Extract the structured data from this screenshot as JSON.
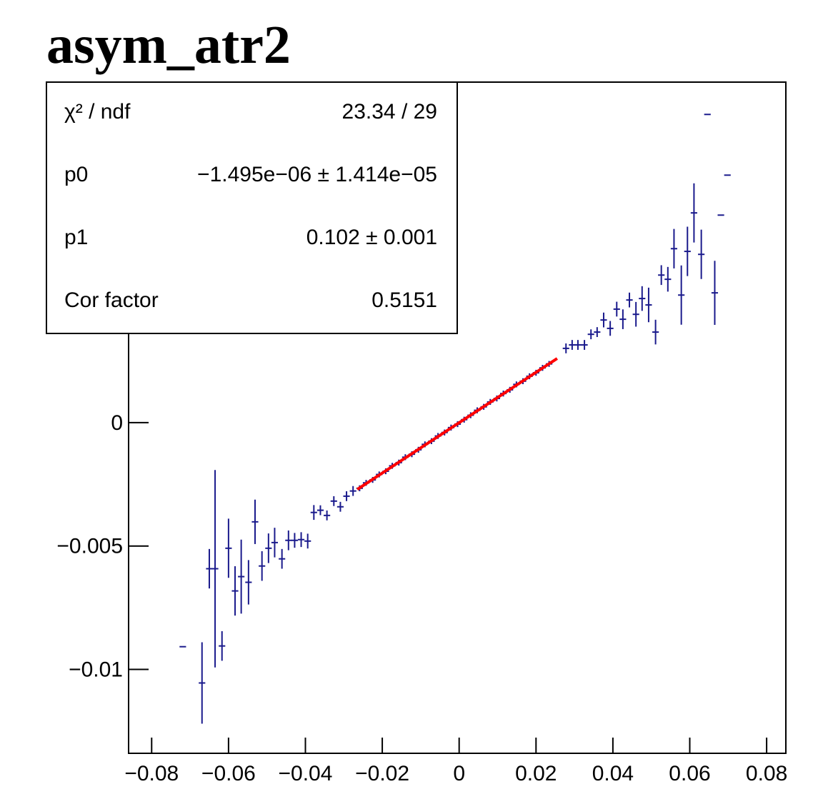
{
  "chart_data": {
    "type": "errorbar",
    "title": "asym_atr2",
    "xlim": [
      -0.086,
      0.085
    ],
    "ylim": [
      -0.0134,
      0.0138
    ],
    "xticks": [
      {
        "value": -0.08,
        "label": "−0.08"
      },
      {
        "value": -0.06,
        "label": "−0.06"
      },
      {
        "value": -0.04,
        "label": "−0.04"
      },
      {
        "value": -0.02,
        "label": "−0.02"
      },
      0,
      0.02,
      0.04,
      0.06,
      0.08
    ],
    "yticks": [
      {
        "value": -0.01,
        "label": "−0.01"
      },
      {
        "value": -0.005,
        "label": "−0.005"
      },
      0
    ],
    "series": [
      {
        "color": "#1a1a8c",
        "xerr": 0.00085,
        "x": [
          -0.0719,
          -0.0669,
          -0.065,
          -0.0635,
          -0.0617,
          -0.06,
          -0.0583,
          -0.0567,
          -0.0548,
          -0.0531,
          -0.0513,
          -0.0496,
          -0.048,
          -0.0461,
          -0.0444,
          -0.0428,
          -0.0411,
          -0.0394,
          -0.0378,
          -0.0361,
          -0.0344,
          -0.0326,
          -0.0309,
          -0.0293,
          -0.0276,
          -0.0259,
          -0.0242,
          -0.0225,
          -0.0208,
          -0.0191,
          -0.0174,
          -0.0157,
          -0.014,
          -0.0123,
          -0.0106,
          -0.0089,
          -0.0072,
          -0.0055,
          -0.0038,
          -0.0021,
          -0.0004,
          0.0013,
          0.003,
          0.0047,
          0.0064,
          0.0081,
          0.0098,
          0.0115,
          0.0132,
          0.0149,
          0.0166,
          0.0183,
          0.02,
          0.0217,
          0.0234,
          0.0278,
          0.0294,
          0.0309,
          0.0326,
          0.0343,
          0.0359,
          0.0376,
          0.0393,
          0.041,
          0.0426,
          0.0443,
          0.046,
          0.0476,
          0.0493,
          0.0511,
          0.0526,
          0.0543,
          0.0559,
          0.0578,
          0.0594,
          0.0611,
          0.063,
          0.0646,
          0.0665,
          0.0681,
          0.0698
        ],
        "values": [
          -0.00908,
          -0.01055,
          -0.00592,
          -0.00592,
          -0.00905,
          -0.00509,
          -0.00682,
          -0.00624,
          -0.00647,
          -0.00402,
          -0.00581,
          -0.00509,
          -0.00486,
          -0.00552,
          -0.00477,
          -0.00477,
          -0.00474,
          -0.0048,
          -0.00364,
          -0.00355,
          -0.00376,
          -0.00318,
          -0.00341,
          -0.00298,
          -0.00277,
          -0.00266,
          -0.00244,
          -0.00232,
          -0.0021,
          -0.00197,
          -0.00175,
          -0.00162,
          -0.0014,
          -0.00128,
          -0.0011,
          -0.00088,
          -0.00075,
          -0.00054,
          -0.0004,
          -0.0002,
          -6e-05,
          0.00012,
          0.0003,
          0.0005,
          0.00064,
          0.00084,
          0.00098,
          0.00118,
          0.00133,
          0.00155,
          0.00168,
          0.00188,
          0.00202,
          0.00222,
          0.00238,
          0.00301,
          0.00315,
          0.00315,
          0.00315,
          0.00358,
          0.00367,
          0.00416,
          0.00382,
          0.0046,
          0.00419,
          0.00497,
          0.00439,
          0.00503,
          0.00477,
          0.00367,
          0.00598,
          0.00581,
          0.00705,
          0.00517,
          0.00694,
          0.0085,
          0.00682,
          0.01249,
          0.00526,
          0.00841,
          0.01003
        ],
        "yerr": [
          0,
          0.00165,
          0.0008,
          0.004,
          0.0006,
          0.0012,
          0.001,
          0.0015,
          0.0009,
          0.0009,
          0.0006,
          0.0006,
          0.0006,
          0.0004,
          0.0004,
          0.0003,
          0.0003,
          0.0003,
          0.0003,
          0.0002,
          0.0002,
          0.0002,
          0.0002,
          0.0002,
          0.0002,
          0.00012,
          0.00012,
          0.00012,
          0.00012,
          0.00012,
          0.00012,
          0.00012,
          0.00012,
          0.00012,
          0.00012,
          0.00012,
          0.00012,
          0.00012,
          0.00012,
          0.00012,
          0.00012,
          0.00012,
          0.00012,
          0.00012,
          0.00012,
          0.00012,
          0.00012,
          0.00012,
          0.00012,
          0.00012,
          0.00012,
          0.00012,
          0.00012,
          0.00012,
          0.00012,
          0.0002,
          0.0002,
          0.0002,
          0.0002,
          0.0002,
          0.0002,
          0.0003,
          0.0003,
          0.0003,
          0.0004,
          0.0003,
          0.0005,
          0.0005,
          0.0007,
          0.0005,
          0.0004,
          0.0005,
          0.0008,
          0.0012,
          0.001,
          0.0012,
          0.001,
          0,
          0.0013,
          0,
          0
        ]
      }
    ],
    "fit": {
      "color": "#ff0000",
      "intercept": -1.495e-06,
      "slope": 0.102,
      "x": [
        -0.0265,
        0.0255
      ]
    },
    "stats": [
      {
        "label": "χ² / ndf",
        "value": "23.34 / 29"
      },
      {
        "label": "p0",
        "value": "−1.495e−06 ± 1.414e−05"
      },
      {
        "label": "p1",
        "value": "0.102 ± 0.001"
      },
      {
        "label": "Cor factor",
        "value": "0.5151"
      }
    ]
  }
}
